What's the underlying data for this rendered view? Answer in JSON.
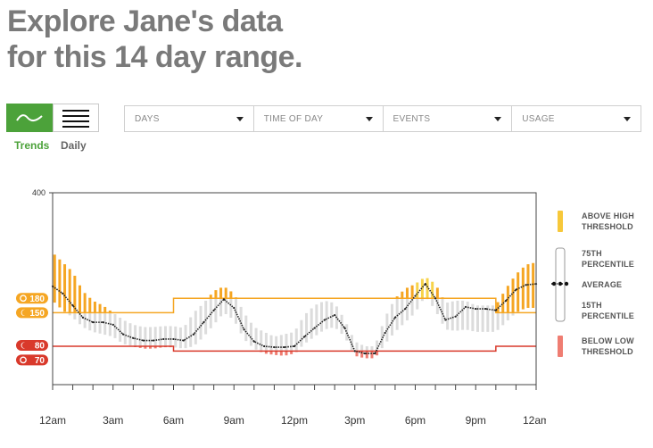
{
  "header": {
    "title_line1": "Explore Jane's data",
    "title_line2": "for this 14 day range."
  },
  "view_toggle": {
    "trends_label": "Trends",
    "daily_label": "Daily",
    "active": "trends",
    "active_color": "#4ca23a"
  },
  "filters": [
    {
      "label": "DAYS"
    },
    {
      "label": "TIME OF DAY"
    },
    {
      "label": "EVENTS"
    },
    {
      "label": "USAGE"
    }
  ],
  "legend": {
    "above_high": "ABOVE HIGH THRESHOLD",
    "p75": "75TH PERCENTILE",
    "average": "AVERAGE",
    "p15": "15TH PERCENTILE",
    "below_low": "BELOW LOW THRESHOLD"
  },
  "colors": {
    "above": "#f5a623",
    "above_peak": "#f7d34a",
    "below": "#ef7d72",
    "band": "#dcdcdc",
    "high_line": "#f5a623",
    "low_line": "#d9392b",
    "average": "#222222"
  },
  "chart_data": {
    "type": "area",
    "ylim": [
      0,
      400
    ],
    "y_tick_labels": [
      "400"
    ],
    "x_tick_labels": [
      "12am",
      "3am",
      "6am",
      "9am",
      "12pm",
      "3pm",
      "6pm",
      "9pm",
      "12am"
    ],
    "xlim_hours": [
      0,
      24
    ],
    "threshold_markers": [
      {
        "label": "180",
        "value": 180,
        "kind": "high",
        "icon": "sun-icon"
      },
      {
        "label": "150",
        "value": 150,
        "kind": "high",
        "icon": "moon-icon"
      },
      {
        "label": "80",
        "value": 80,
        "kind": "low",
        "icon": "moon-icon"
      },
      {
        "label": "70",
        "value": 70,
        "kind": "low",
        "icon": "sun-icon"
      }
    ],
    "high_threshold": [
      {
        "from_hour": 0,
        "to_hour": 6,
        "value": 150
      },
      {
        "from_hour": 6,
        "to_hour": 22,
        "value": 180
      },
      {
        "from_hour": 22,
        "to_hour": 24,
        "value": 150
      }
    ],
    "low_threshold": [
      {
        "from_hour": 0,
        "to_hour": 6,
        "value": 80
      },
      {
        "from_hour": 6,
        "to_hour": 22,
        "value": 70
      },
      {
        "from_hour": 22,
        "to_hour": 24,
        "value": 80
      }
    ],
    "average": {
      "name": "Average",
      "hours": [
        0,
        0.5,
        1,
        1.5,
        2,
        2.5,
        3,
        3.5,
        4,
        4.5,
        5,
        5.5,
        6,
        6.5,
        7,
        7.5,
        8,
        8.5,
        9,
        9.5,
        10,
        10.5,
        11,
        11.5,
        12,
        12.5,
        13,
        13.5,
        14,
        14.5,
        15,
        15.5,
        16,
        16.5,
        17,
        17.5,
        18,
        18.5,
        19,
        19.5,
        20,
        20.5,
        21,
        21.5,
        22,
        22.5,
        23,
        23.5,
        24
      ],
      "values": [
        205,
        190,
        165,
        140,
        130,
        130,
        125,
        105,
        97,
        92,
        92,
        95,
        95,
        92,
        105,
        130,
        155,
        178,
        160,
        115,
        90,
        80,
        78,
        78,
        80,
        100,
        118,
        135,
        145,
        118,
        70,
        65,
        65,
        108,
        140,
        158,
        185,
        210,
        180,
        135,
        142,
        162,
        158,
        158,
        155,
        175,
        198,
        208,
        210
      ]
    },
    "p75": [
      275,
      255,
      235,
      195,
      175,
      165,
      150,
      135,
      125,
      120,
      120,
      122,
      122,
      118,
      150,
      170,
      195,
      205,
      190,
      150,
      120,
      110,
      100,
      105,
      110,
      145,
      165,
      175,
      170,
      135,
      90,
      80,
      80,
      140,
      180,
      200,
      210,
      225,
      210,
      170,
      175,
      175,
      165,
      165,
      165,
      200,
      230,
      250,
      255
    ],
    "p15": [
      175,
      155,
      140,
      120,
      110,
      105,
      100,
      85,
      80,
      75,
      75,
      78,
      78,
      75,
      80,
      100,
      125,
      150,
      135,
      95,
      75,
      65,
      62,
      60,
      65,
      85,
      100,
      115,
      120,
      100,
      60,
      55,
      55,
      85,
      110,
      130,
      150,
      185,
      155,
      115,
      112,
      115,
      110,
      110,
      110,
      130,
      150,
      160,
      160
    ]
  }
}
